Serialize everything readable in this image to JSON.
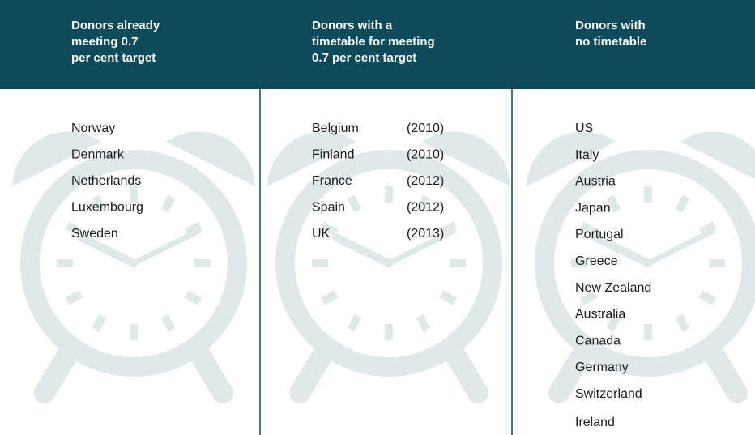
{
  "columns": [
    {
      "header_lines": [
        "Donors already",
        "meeting 0.7",
        "per cent target"
      ],
      "rows": [
        [
          "Norway"
        ],
        [
          "Denmark"
        ],
        [
          "Netherlands"
        ],
        [
          "Luxembourg"
        ],
        [
          "Sweden"
        ]
      ]
    },
    {
      "header_lines": [
        "Donors with a",
        "timetable for meeting",
        "0.7 per cent target"
      ],
      "rows": [
        [
          "Belgium",
          "(2010)"
        ],
        [
          "Finland",
          "(2010)"
        ],
        [
          "France",
          "(2012)"
        ],
        [
          "Spain",
          "(2012)"
        ],
        [
          "UK",
          "(2013)"
        ]
      ]
    },
    {
      "header_lines": [
        "Donors with",
        "no timetable"
      ],
      "rows": [
        [
          "US"
        ],
        [
          "Italy"
        ],
        [
          "Austria"
        ],
        [
          "Japan"
        ],
        [
          "Portugal"
        ],
        [
          "Greece"
        ],
        [
          "New Zealand"
        ],
        [
          "Australia"
        ],
        [
          "Canada"
        ],
        [
          "Germany"
        ],
        [
          "Switzerland"
        ],
        [
          "Ireland"
        ]
      ]
    }
  ]
}
